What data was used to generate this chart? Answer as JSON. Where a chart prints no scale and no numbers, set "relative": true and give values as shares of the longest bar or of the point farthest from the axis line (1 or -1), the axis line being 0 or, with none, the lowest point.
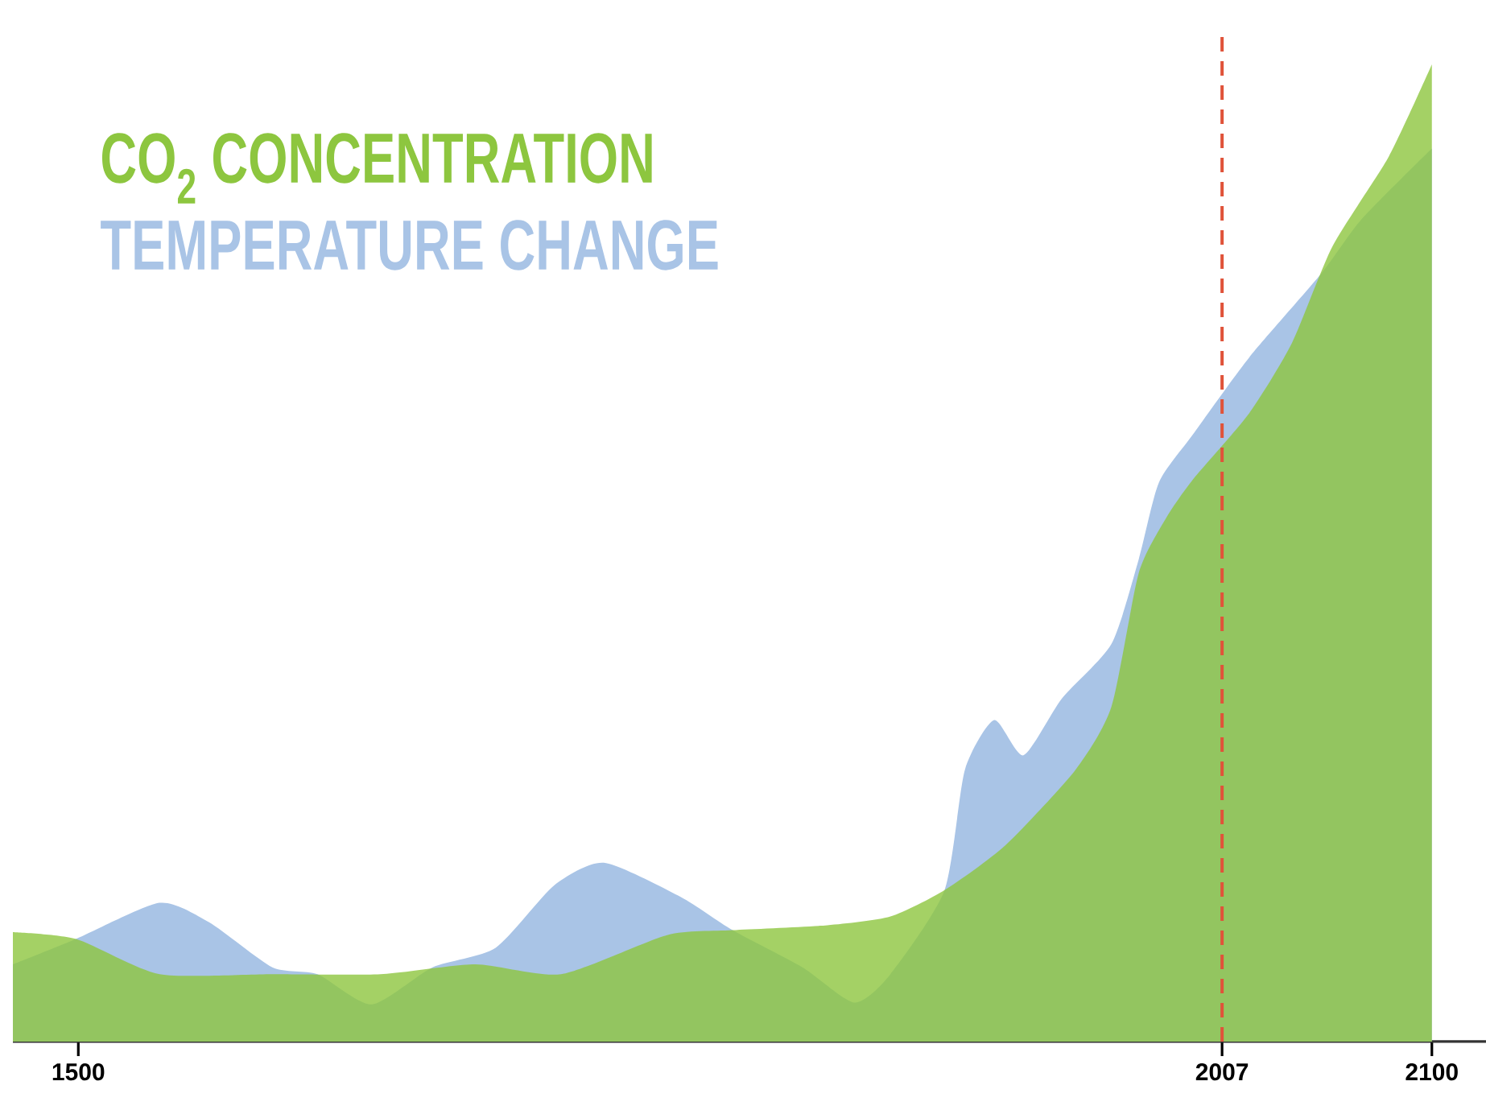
{
  "chart_data": {
    "type": "area",
    "relative": true,
    "legend": "top left",
    "xlim": [
      1471,
      2124
    ],
    "xticks": [
      1500,
      2007,
      2100
    ],
    "series": [
      {
        "name": "TEMPERATURE CHANGE",
        "color": "#a9c4e6",
        "x": [
          1471,
          1499,
          1536,
          1558,
          1586,
          1606,
          1630,
          1657,
          1685,
          1711,
          1733,
          1767,
          1790,
          1821,
          1844,
          1860,
          1884,
          1893,
          1906,
          1919,
          1936,
          1958,
          1970,
          1979,
          1994,
          2019,
          2051,
          2069,
          2100
        ],
        "values": [
          0.079,
          0.105,
          0.142,
          0.122,
          0.076,
          0.069,
          0.038,
          0.076,
          0.096,
          0.16,
          0.183,
          0.148,
          0.114,
          0.076,
          0.04,
          0.069,
          0.155,
          0.278,
          0.329,
          0.293,
          0.351,
          0.407,
          0.493,
          0.572,
          0.621,
          0.7,
          0.786,
          0.842,
          0.914
        ]
      },
      {
        "name": "CO$_{2}$ CONCENTRATION",
        "color": "#8dc63f",
        "x": [
          1471,
          1499,
          1536,
          1586,
          1634,
          1676,
          1714,
          1761,
          1790,
          1832,
          1860,
          1884,
          1911,
          1942,
          1958,
          1970,
          1982,
          1994,
          2019,
          2038,
          2056,
          2081,
          2100
        ],
        "values": [
          0.112,
          0.105,
          0.069,
          0.069,
          0.069,
          0.079,
          0.069,
          0.109,
          0.114,
          0.119,
          0.128,
          0.155,
          0.201,
          0.278,
          0.343,
          0.479,
          0.535,
          0.575,
          0.643,
          0.715,
          0.814,
          0.906,
          1.0
        ]
      }
    ],
    "ref_lines": [
      {
        "axis": "x",
        "value": 2007,
        "color": "#e0533a",
        "line_style": "dashed"
      }
    ]
  }
}
